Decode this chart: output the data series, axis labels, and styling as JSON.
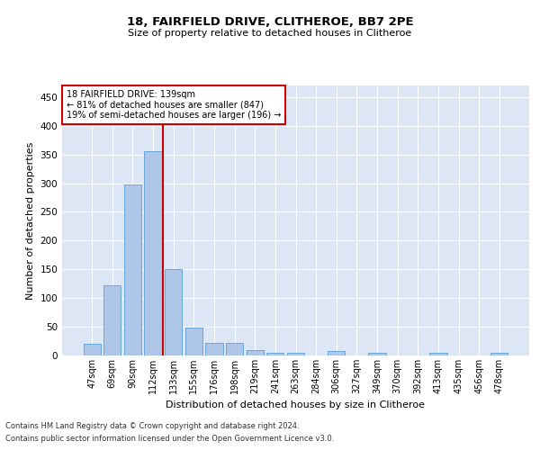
{
  "title": "18, FAIRFIELD DRIVE, CLITHEROE, BB7 2PE",
  "subtitle": "Size of property relative to detached houses in Clitheroe",
  "xlabel": "Distribution of detached houses by size in Clitheroe",
  "ylabel": "Number of detached properties",
  "footnote1": "Contains HM Land Registry data © Crown copyright and database right 2024.",
  "footnote2": "Contains public sector information licensed under the Open Government Licence v3.0.",
  "categories": [
    "47sqm",
    "69sqm",
    "90sqm",
    "112sqm",
    "133sqm",
    "155sqm",
    "176sqm",
    "198sqm",
    "219sqm",
    "241sqm",
    "263sqm",
    "284sqm",
    "306sqm",
    "327sqm",
    "349sqm",
    "370sqm",
    "392sqm",
    "413sqm",
    "435sqm",
    "456sqm",
    "478sqm"
  ],
  "values": [
    20,
    122,
    298,
    355,
    150,
    48,
    22,
    22,
    10,
    5,
    5,
    0,
    8,
    0,
    5,
    0,
    0,
    5,
    0,
    0,
    5
  ],
  "bar_color": "#aec6e8",
  "bar_edge_color": "#5a9fd4",
  "background_color": "#dce6f5",
  "grid_color": "#ffffff",
  "vline_color": "#cc0000",
  "annotation_text": "18 FAIRFIELD DRIVE: 139sqm\n← 81% of detached houses are smaller (847)\n19% of semi-detached houses are larger (196) →",
  "annotation_box_color": "#cc0000",
  "ylim": [
    0,
    470
  ],
  "yticks": [
    0,
    50,
    100,
    150,
    200,
    250,
    300,
    350,
    400,
    450
  ]
}
